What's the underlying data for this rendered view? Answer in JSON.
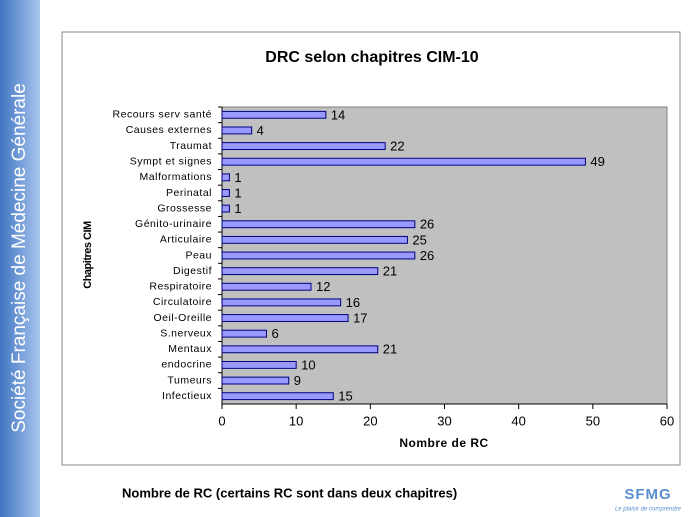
{
  "sidebar": "Société Française de Médecine Générale",
  "chart_data": {
    "type": "bar",
    "orientation": "horizontal",
    "title": "DRC selon chapitres CIM-10",
    "x_label": "Nombre de RC",
    "y_label": "Chapitres CIM",
    "categories": [
      "Recours serv santé",
      "Causes externes",
      "Traumat",
      "Sympt et signes",
      "Malformations",
      "Perinatal",
      "Grossesse",
      "Génito-urinaire",
      "Articulaire",
      "Peau",
      "Digestif",
      "Respiratoire",
      "Circulatoire",
      "Oeil-Oreille",
      "S.nerveux",
      "Mentaux",
      "endocrine",
      "Tumeurs",
      "Infectieux"
    ],
    "values": [
      14,
      4,
      22,
      49,
      1,
      1,
      1,
      26,
      25,
      26,
      21,
      12,
      16,
      17,
      6,
      21,
      10,
      9,
      15
    ],
    "color": "#9999ff",
    "xlim": [
      0,
      60
    ],
    "xticks": [
      0,
      10,
      20,
      30,
      40,
      50,
      60
    ],
    "plot_background": "#c0c0c0"
  },
  "footer": "Nombre de RC (certains RC sont dans deux chapitres)",
  "logo": {
    "name": "SFMG",
    "tagline": "Le plaisir de comprendre"
  }
}
